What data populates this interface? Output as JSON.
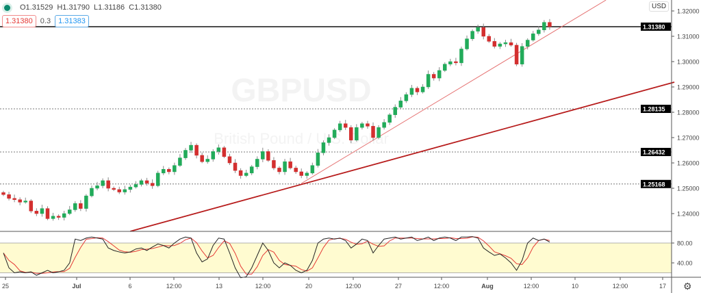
{
  "header": {
    "open": "O1.31529",
    "high": "H1.31790",
    "low": "L1.31186",
    "close": "C1.31380",
    "bid": "1.31380",
    "spread": "0.3",
    "ask": "1.31383",
    "currency": "USD"
  },
  "watermark": {
    "symbol": "GBPUSD",
    "description": "British Pound / U.S. Dollar"
  },
  "colors": {
    "up": "#22ab5a",
    "down": "#d32f2f",
    "trend": "#b71c1c",
    "k_line": "#222222",
    "d_line": "#e53935",
    "band": "#fffbd0"
  },
  "chart_data": [
    {
      "type": "candlestick",
      "ylim": [
        1.233,
        1.3235
      ],
      "y_ticks": [
        "1.32000",
        "1.31000",
        "1.30000",
        "1.29000",
        "1.28000",
        "1.27000",
        "1.26000",
        "1.25000",
        "1.24000"
      ],
      "x_ticks": [
        "25",
        "Jul",
        "6",
        "12:00",
        "13",
        "12:00",
        "20",
        "12:00",
        "27",
        "12:00",
        "Aug",
        "12:00",
        "10",
        "12:00",
        "17"
      ],
      "closes": [
        1.2475,
        1.246,
        1.2455,
        1.2445,
        1.245,
        1.241,
        1.24,
        1.242,
        1.238,
        1.239,
        1.2385,
        1.24,
        1.2415,
        1.244,
        1.242,
        1.247,
        1.25,
        1.251,
        1.253,
        1.25,
        1.2495,
        1.2485,
        1.2495,
        1.2505,
        1.2515,
        1.253,
        1.252,
        1.251,
        1.256,
        1.2575,
        1.2565,
        1.259,
        1.262,
        1.265,
        1.267,
        1.263,
        1.2605,
        1.2615,
        1.2645,
        1.266,
        1.2625,
        1.26,
        1.257,
        1.255,
        1.256,
        1.2585,
        1.2615,
        1.2645,
        1.261,
        1.258,
        1.2565,
        1.2605,
        1.258,
        1.2565,
        1.255,
        1.256,
        1.259,
        1.264,
        1.268,
        1.27,
        1.273,
        1.2755,
        1.274,
        1.269,
        1.274,
        1.2755,
        1.2745,
        1.27,
        1.274,
        1.276,
        1.279,
        1.282,
        1.2845,
        1.287,
        1.2895,
        1.288,
        1.29,
        1.295,
        1.2935,
        1.2965,
        1.299,
        1.3,
        1.2995,
        1.305,
        1.309,
        1.312,
        1.3135,
        1.31,
        1.308,
        1.306,
        1.307,
        1.3075,
        1.3065,
        1.299,
        1.306,
        1.3085,
        1.311,
        1.3125,
        1.3155,
        1.3138
      ],
      "levels": [
        {
          "label": "1.31380",
          "price": 1.3138,
          "style": "solid"
        },
        {
          "label": "1.28135",
          "price": 1.28135,
          "style": "dotted"
        },
        {
          "label": "1.26432",
          "price": 1.26432,
          "style": "dotted"
        },
        {
          "label": "1.25168",
          "price": 1.25168,
          "style": "dotted"
        }
      ],
      "trendlines": [
        {
          "from": [
            23,
            1.233
          ],
          "to": [
            121.6,
            1.2919
          ],
          "style": "thick"
        },
        {
          "from": [
            54,
            1.2519
          ],
          "to": [
            109.2,
            1.3243
          ],
          "style": "thin"
        }
      ]
    },
    {
      "type": "line",
      "indicator": "stochastic",
      "ylim": [
        0,
        100
      ],
      "band": [
        20,
        80
      ],
      "y_ticks": [
        "80.00",
        "40.00"
      ],
      "k": [
        60,
        30,
        20,
        22,
        20,
        22,
        15,
        20,
        25,
        20,
        22,
        25,
        40,
        88,
        85,
        90,
        92,
        90,
        88,
        70,
        65,
        62,
        60,
        62,
        68,
        70,
        65,
        72,
        78,
        75,
        70,
        80,
        88,
        92,
        90,
        60,
        42,
        48,
        75,
        90,
        88,
        60,
        30,
        10,
        12,
        30,
        55,
        80,
        65,
        40,
        30,
        40,
        35,
        25,
        20,
        25,
        45,
        80,
        88,
        90,
        88,
        90,
        85,
        70,
        78,
        88,
        85,
        60,
        75,
        88,
        90,
        92,
        88,
        90,
        92,
        85,
        88,
        92,
        85,
        90,
        92,
        90,
        85,
        92,
        92,
        93,
        90,
        70,
        62,
        55,
        58,
        50,
        40,
        25,
        45,
        80,
        90,
        85,
        88,
        82
      ]
    }
  ]
}
